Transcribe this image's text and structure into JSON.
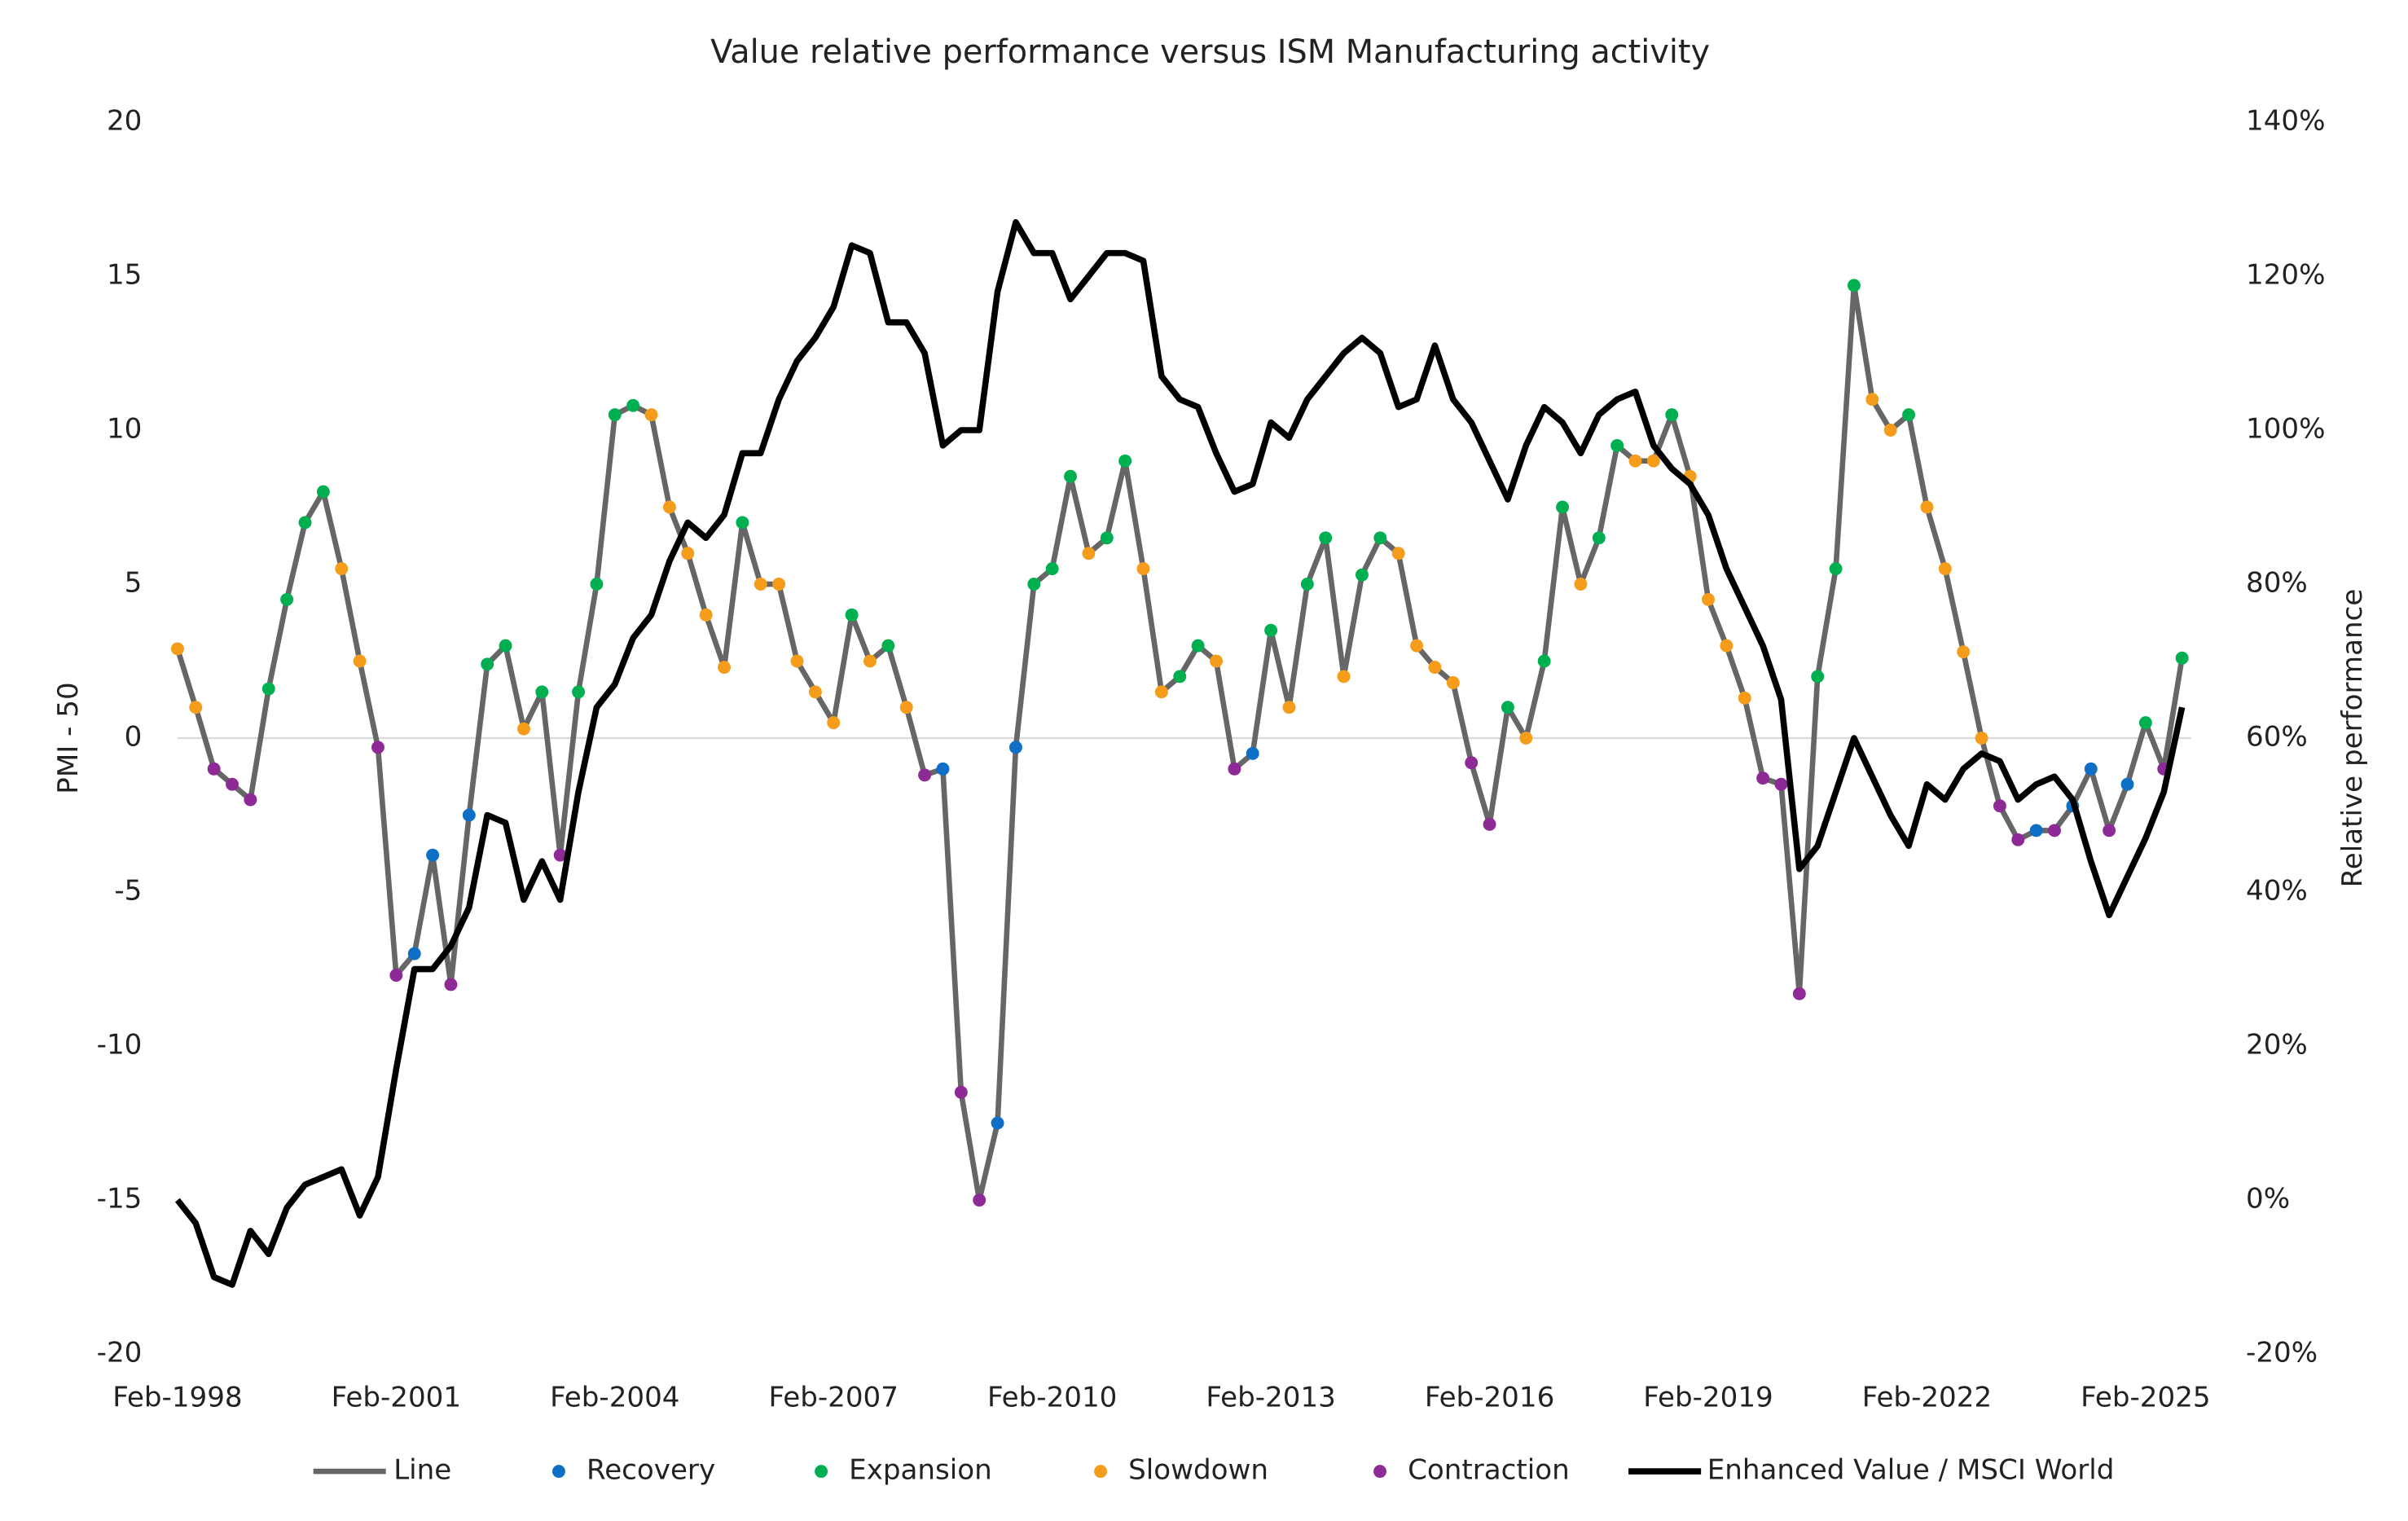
{
  "chart_data": {
    "type": "line",
    "title": "Value relative performance versus ISM Manufacturing activity",
    "y_label": "PMI - 50",
    "y2_label": "Relative performance",
    "zero_line": true,
    "categories": [
      "Feb-1998",
      null,
      null,
      null,
      null,
      null,
      null,
      null,
      null,
      null,
      null,
      null,
      "Feb-2001",
      null,
      null,
      null,
      null,
      null,
      null,
      null,
      null,
      null,
      null,
      null,
      "Feb-2004",
      null,
      null,
      null,
      null,
      null,
      null,
      null,
      null,
      null,
      null,
      null,
      "Feb-2007",
      null,
      null,
      null,
      null,
      null,
      null,
      null,
      null,
      null,
      null,
      null,
      "Feb-2010",
      null,
      null,
      null,
      null,
      null,
      null,
      null,
      null,
      null,
      null,
      null,
      "Feb-2013",
      null,
      null,
      null,
      null,
      null,
      null,
      null,
      null,
      null,
      null,
      null,
      "Feb-2016",
      null,
      null,
      null,
      null,
      null,
      null,
      null,
      null,
      null,
      null,
      null,
      "Feb-2019",
      null,
      null,
      null,
      null,
      null,
      null,
      null,
      null,
      null,
      null,
      null,
      "Feb-2022",
      null,
      null,
      null,
      null,
      null,
      null,
      null,
      null,
      null,
      null,
      null,
      "Feb-2025",
      null,
      null
    ],
    "ylim": [
      -20,
      20
    ],
    "yticks": [
      20,
      15,
      10,
      5,
      0,
      -5,
      -10,
      -15,
      -20
    ],
    "y2lim": [
      -20,
      140
    ],
    "y2ticks": [
      {
        "value": 140,
        "label": "140%"
      },
      {
        "value": 120,
        "label": "120%"
      },
      {
        "value": 100,
        "label": "100%"
      },
      {
        "value": 80,
        "label": "80%"
      },
      {
        "value": 60,
        "label": "60%"
      },
      {
        "value": 40,
        "label": "40%"
      },
      {
        "value": 20,
        "label": "20%"
      },
      {
        "value": 0,
        "label": "0%"
      },
      {
        "value": -20,
        "label": "-20%"
      }
    ],
    "series": [
      {
        "name": "Line",
        "style": "line",
        "color": "#666666",
        "values": [
          2.9,
          1,
          -1,
          -1.5,
          -2,
          1.6,
          4.5,
          7,
          8,
          5.5,
          2.5,
          -0.3,
          -7.7,
          -7,
          -3.8,
          -8,
          -2.5,
          2.4,
          3,
          0.3,
          1.5,
          -3.8,
          1.5,
          5,
          10.5,
          10.8,
          10.5,
          7.5,
          6,
          4,
          2.3,
          7,
          5,
          5,
          2.5,
          1.5,
          0.5,
          4,
          2.5,
          3,
          1,
          -1.2,
          -1,
          -11.5,
          -15,
          -12.5,
          -0.3,
          5,
          5.5,
          8.5,
          6,
          6.5,
          9,
          5.5,
          1.5,
          2,
          3,
          2.5,
          -1,
          -0.5,
          3.5,
          1,
          5,
          6.5,
          2,
          5.3,
          6.5,
          6,
          3,
          2.3,
          1.8,
          -0.8,
          -2.8,
          1,
          0,
          2.5,
          7.5,
          5,
          6.5,
          9.5,
          9,
          9,
          10.5,
          8.5,
          4.5,
          3,
          1.3,
          -1.3,
          -1.5,
          -8.3,
          2,
          5.5,
          14.7,
          11,
          10,
          10.5,
          7.5,
          5.5,
          2.8,
          0,
          -2.2,
          -3.3,
          -3,
          -3,
          -2.2,
          -1,
          -3,
          -1.5,
          0.5,
          -1,
          2.6
        ]
      },
      {
        "name": "Recovery",
        "style": "markers",
        "color": "#0f6fc6",
        "values": [
          null,
          null,
          null,
          null,
          null,
          null,
          null,
          null,
          null,
          null,
          null,
          null,
          null,
          -7,
          -3.8,
          null,
          -2.5,
          null,
          null,
          null,
          null,
          null,
          null,
          null,
          null,
          null,
          null,
          null,
          null,
          null,
          null,
          null,
          null,
          null,
          null,
          null,
          null,
          null,
          null,
          null,
          null,
          null,
          -1,
          null,
          null,
          -12.5,
          -0.3,
          null,
          null,
          null,
          null,
          null,
          null,
          null,
          null,
          null,
          null,
          null,
          null,
          -0.5,
          null,
          null,
          null,
          null,
          null,
          null,
          null,
          null,
          null,
          null,
          null,
          null,
          null,
          null,
          null,
          null,
          null,
          null,
          null,
          null,
          null,
          null,
          null,
          null,
          null,
          null,
          null,
          null,
          null,
          null,
          null,
          null,
          null,
          null,
          null,
          null,
          null,
          null,
          null,
          null,
          null,
          null,
          -3,
          null,
          -2.2,
          -1,
          null,
          -1.5,
          null,
          null,
          null
        ]
      },
      {
        "name": "Expansion",
        "style": "markers",
        "color": "#00b050",
        "values": [
          null,
          null,
          null,
          null,
          null,
          1.6,
          4.5,
          7,
          8,
          null,
          null,
          null,
          null,
          null,
          null,
          null,
          null,
          2.4,
          3,
          null,
          1.5,
          null,
          1.5,
          5,
          10.5,
          10.8,
          null,
          null,
          null,
          null,
          null,
          7,
          null,
          null,
          null,
          null,
          null,
          4,
          null,
          3,
          null,
          null,
          null,
          null,
          null,
          null,
          null,
          5,
          5.5,
          8.5,
          null,
          6.5,
          9,
          null,
          null,
          2,
          3,
          null,
          null,
          null,
          3.5,
          null,
          5,
          6.5,
          null,
          5.3,
          6.5,
          null,
          null,
          null,
          null,
          null,
          null,
          1,
          null,
          2.5,
          7.5,
          null,
          6.5,
          9.5,
          null,
          null,
          10.5,
          null,
          null,
          null,
          null,
          null,
          null,
          null,
          2,
          5.5,
          14.7,
          null,
          null,
          10.5,
          null,
          null,
          null,
          null,
          null,
          null,
          null,
          null,
          null,
          null,
          null,
          null,
          0.5,
          null,
          2.6
        ]
      },
      {
        "name": "Slowdown",
        "style": "markers",
        "color": "#f59c1a",
        "values": [
          2.9,
          1,
          null,
          null,
          null,
          null,
          null,
          null,
          null,
          5.5,
          2.5,
          null,
          null,
          null,
          null,
          null,
          null,
          null,
          null,
          0.3,
          null,
          null,
          null,
          null,
          null,
          null,
          10.5,
          7.5,
          6,
          4,
          2.3,
          null,
          5,
          5,
          2.5,
          1.5,
          0.5,
          null,
          2.5,
          null,
          1,
          null,
          null,
          null,
          null,
          null,
          null,
          null,
          null,
          null,
          6,
          null,
          null,
          5.5,
          1.5,
          null,
          null,
          2.5,
          null,
          null,
          null,
          1,
          null,
          null,
          2,
          null,
          null,
          6,
          3,
          2.3,
          1.8,
          null,
          null,
          null,
          0,
          null,
          null,
          5,
          null,
          null,
          9,
          9,
          null,
          8.5,
          4.5,
          3,
          1.3,
          null,
          null,
          null,
          null,
          null,
          null,
          11,
          10,
          null,
          7.5,
          5.5,
          2.8,
          0,
          null,
          null,
          null,
          null,
          null,
          null,
          null,
          null,
          null,
          null,
          null
        ]
      },
      {
        "name": "Contraction",
        "style": "markers",
        "color": "#8e2a96",
        "values": [
          null,
          null,
          -1,
          -1.5,
          -2,
          null,
          null,
          null,
          null,
          null,
          null,
          -0.3,
          -7.7,
          null,
          null,
          -8,
          null,
          null,
          null,
          null,
          null,
          -3.8,
          null,
          null,
          null,
          null,
          null,
          null,
          null,
          null,
          null,
          null,
          null,
          null,
          null,
          null,
          null,
          null,
          null,
          null,
          null,
          -1.2,
          null,
          -11.5,
          -15,
          null,
          null,
          null,
          null,
          null,
          null,
          null,
          null,
          null,
          null,
          null,
          null,
          null,
          -1,
          null,
          null,
          null,
          null,
          null,
          null,
          null,
          null,
          null,
          null,
          null,
          null,
          -0.8,
          -2.8,
          null,
          null,
          null,
          null,
          null,
          null,
          null,
          null,
          null,
          null,
          null,
          null,
          null,
          null,
          -1.3,
          -1.5,
          -8.3,
          null,
          null,
          null,
          null,
          null,
          null,
          null,
          null,
          null,
          null,
          -2.2,
          -3.3,
          null,
          -3,
          null,
          null,
          -3,
          null,
          null,
          -1,
          null
        ]
      },
      {
        "name": "Enhanced Value / MSCI World",
        "style": "line",
        "axis": "y2",
        "color": "#000000",
        "values": [
          0,
          -3,
          -10,
          -11,
          -4,
          -7,
          -1,
          2,
          3,
          4,
          -2,
          3,
          17,
          30,
          30,
          33,
          38,
          50,
          49,
          39,
          44,
          39,
          53,
          64,
          67,
          73,
          76,
          83,
          88,
          86,
          89,
          97,
          97,
          104,
          109,
          112,
          116,
          124,
          123,
          114,
          114,
          110,
          98,
          100,
          100,
          118,
          127,
          123,
          123,
          117,
          120,
          123,
          123,
          122,
          107,
          104,
          103,
          97,
          92,
          93,
          101,
          99,
          104,
          107,
          110,
          112,
          110,
          103,
          104,
          111,
          104,
          101,
          96,
          91,
          98,
          103,
          101,
          97,
          102,
          104,
          105,
          98,
          95,
          93,
          89,
          82,
          77,
          72,
          65,
          43,
          46,
          53,
          60,
          55,
          50,
          46,
          54,
          52,
          56,
          58,
          57,
          52,
          54,
          55,
          52,
          44,
          37,
          42,
          47,
          53,
          64
        ]
      }
    ]
  }
}
